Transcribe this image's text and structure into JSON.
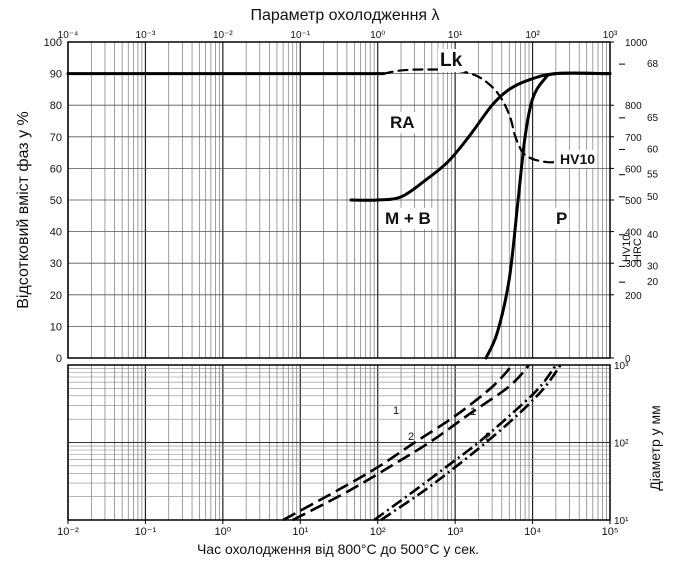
{
  "chart_data": [
    {
      "type": "line",
      "title": "Параметр охолодження λ",
      "xlabel": "Час охолодження від 800°C до 500°C у сек.",
      "ylabel": "Відсотковий вміст фаз у %",
      "x_scale": "log",
      "xlim": [
        0.01,
        100000
      ],
      "ylim": [
        0,
        100
      ],
      "x_tick_labels": [
        "10⁻²",
        "10⁻¹",
        "10⁰",
        "10¹",
        "10²",
        "10³",
        "10⁴",
        "10⁵"
      ],
      "y_tick_labels": [
        "0",
        "10",
        "20",
        "30",
        "40",
        "50",
        "60",
        "70",
        "80",
        "90",
        "100"
      ],
      "top_axis": {
        "label": "Параметр охолодження λ",
        "tick_labels": [
          "10⁻⁴",
          "10⁻³",
          "10⁻²",
          "10⁻¹",
          "10⁰",
          "10¹",
          "10²",
          "10³"
        ]
      },
      "right_axis": {
        "labels": [
          "HV10",
          "HRC"
        ],
        "hv_ticks": [
          "0",
          "200",
          "300",
          "400",
          "500",
          "600",
          "700",
          "800",
          "1000"
        ],
        "hv_values": [
          0,
          200,
          300,
          400,
          500,
          600,
          700,
          800,
          1000
        ],
        "hrc_ticks": [
          "20",
          "30",
          "40",
          "50",
          "55",
          "60",
          "65",
          "68"
        ],
        "hrc_positions_hv": [
          240,
          290,
          390,
          510,
          580,
          660,
          760,
          930
        ]
      },
      "annotations": [
        "RA",
        "M + B",
        "P",
        "Lk",
        "HV10"
      ],
      "series": [
        {
          "style": "solid",
          "points": [
            [
              0.01,
              90
            ],
            [
              0.1,
              90
            ],
            [
              1,
              90
            ],
            [
              10,
              90
            ],
            [
              120,
              90
            ]
          ]
        },
        {
          "style": "solid",
          "points": [
            [
              45,
              50
            ],
            [
              100,
              50
            ],
            [
              200,
              51
            ],
            [
              400,
              56
            ],
            [
              800,
              62
            ],
            [
              1500,
              70
            ],
            [
              3000,
              80
            ],
            [
              5000,
              85
            ],
            [
              9000,
              88
            ],
            [
              20000,
              90
            ],
            [
              100000,
              90
            ]
          ]
        },
        {
          "style": "solid",
          "points": [
            [
              2500,
              0
            ],
            [
              3500,
              8
            ],
            [
              5000,
              25
            ],
            [
              6500,
              50
            ],
            [
              8000,
              70
            ],
            [
              10000,
              82
            ],
            [
              14000,
              88
            ],
            [
              20000,
              90
            ],
            [
              100000,
              90
            ]
          ]
        },
        {
          "name": "HV10",
          "style": "dashed",
          "points": [
            [
              120,
              90
            ],
            [
              200,
              91
            ],
            [
              400,
              91.3
            ],
            [
              1000,
              91
            ],
            [
              2000,
              89
            ],
            [
              3500,
              84
            ],
            [
              5000,
              77
            ],
            [
              6000,
              70
            ],
            [
              7500,
              65
            ],
            [
              10000,
              63
            ],
            [
              15000,
              62
            ],
            [
              20000,
              62
            ]
          ]
        }
      ]
    },
    {
      "type": "line",
      "xlabel": "Час охолодження від 800°C до 500°C у сек.",
      "ylabel": "Діаметр у мм",
      "x_scale": "log",
      "y_scale": "log",
      "xlim": [
        0.01,
        100000
      ],
      "ylim": [
        10,
        1000
      ],
      "x_tick_labels": [
        "10⁻²",
        "10⁻¹",
        "10⁰",
        "10¹",
        "10²",
        "10³",
        "10⁴",
        "10⁵"
      ],
      "y_tick_labels": [
        "10¹",
        "10²",
        "10³"
      ],
      "series": [
        {
          "name": "1",
          "style": "dash",
          "points": [
            [
              6,
              10
            ],
            [
              30,
              24
            ],
            [
              100,
              48
            ],
            [
              300,
              100
            ],
            [
              1000,
              220
            ],
            [
              3000,
              520
            ],
            [
              5500,
              1000
            ]
          ]
        },
        {
          "name": "2",
          "style": "dash",
          "points": [
            [
              8,
              10
            ],
            [
              40,
              23
            ],
            [
              150,
              50
            ],
            [
              500,
              105
            ],
            [
              1500,
              230
            ],
            [
              5000,
              530
            ],
            [
              9000,
              1000
            ]
          ]
        },
        {
          "name": "1",
          "style": "dash-dot",
          "points": [
            [
              90,
              10
            ],
            [
              300,
              24
            ],
            [
              800,
              50
            ],
            [
              2000,
              100
            ],
            [
              5000,
              220
            ],
            [
              12000,
              500
            ],
            [
              20000,
              1000
            ]
          ]
        },
        {
          "name": "2",
          "style": "dash-dot",
          "points": [
            [
              110,
              10
            ],
            [
              400,
              24
            ],
            [
              1000,
              48
            ],
            [
              2500,
              100
            ],
            [
              6500,
              230
            ],
            [
              14000,
              500
            ],
            [
              23000,
              1000
            ]
          ]
        }
      ]
    }
  ]
}
